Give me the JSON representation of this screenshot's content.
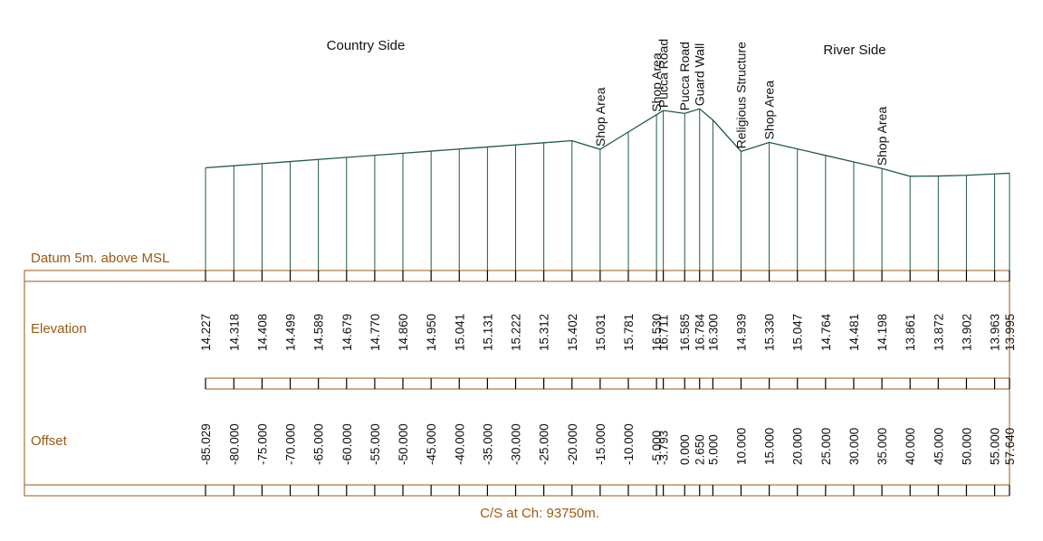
{
  "side_labels": {
    "left": "Country Side",
    "right": "River Side"
  },
  "datum_label": "Datum 5m. above MSL",
  "rows": {
    "elevation": "Elevation",
    "offset": "Offset"
  },
  "caption": "C/S at Ch: 93750m.",
  "colors": {
    "profile": "#1e5a4a",
    "frame": "#9a5a12",
    "text": "#111111"
  },
  "chart_data": {
    "type": "line",
    "xlabel": "Offset",
    "ylabel": "Elevation",
    "datum": 5,
    "points": [
      {
        "offset": -85.029,
        "elevation": 14.227,
        "offset_label": "-85.029",
        "elevation_label": "14.227"
      },
      {
        "offset": -80.0,
        "elevation": 14.318,
        "offset_label": "-80.000",
        "elevation_label": "14.318"
      },
      {
        "offset": -75.0,
        "elevation": 14.408,
        "offset_label": "-75.000",
        "elevation_label": "14.408"
      },
      {
        "offset": -70.0,
        "elevation": 14.499,
        "offset_label": "-70.000",
        "elevation_label": "14.499"
      },
      {
        "offset": -65.0,
        "elevation": 14.589,
        "offset_label": "-65.000",
        "elevation_label": "14.589"
      },
      {
        "offset": -60.0,
        "elevation": 14.679,
        "offset_label": "-60.000",
        "elevation_label": "14.679"
      },
      {
        "offset": -55.0,
        "elevation": 14.77,
        "offset_label": "-55.000",
        "elevation_label": "14.770"
      },
      {
        "offset": -50.0,
        "elevation": 14.86,
        "offset_label": "-50.000",
        "elevation_label": "14.860"
      },
      {
        "offset": -45.0,
        "elevation": 14.95,
        "offset_label": "-45.000",
        "elevation_label": "14.950"
      },
      {
        "offset": -40.0,
        "elevation": 15.041,
        "offset_label": "-40.000",
        "elevation_label": "15.041"
      },
      {
        "offset": -35.0,
        "elevation": 15.131,
        "offset_label": "-35.000",
        "elevation_label": "15.131"
      },
      {
        "offset": -30.0,
        "elevation": 15.222,
        "offset_label": "-30.000",
        "elevation_label": "15.222"
      },
      {
        "offset": -25.0,
        "elevation": 15.312,
        "offset_label": "-25.000",
        "elevation_label": "15.312"
      },
      {
        "offset": -20.0,
        "elevation": 15.402,
        "offset_label": "-20.000",
        "elevation_label": "15.402"
      },
      {
        "offset": -15.0,
        "elevation": 15.031,
        "offset_label": "-15.000",
        "elevation_label": "15.031"
      },
      {
        "offset": -10.0,
        "elevation": 15.781,
        "offset_label": "-10.000",
        "elevation_label": "15.781"
      },
      {
        "offset": -5.0,
        "elevation": 16.53,
        "offset_label": "-5.000",
        "elevation_label": "16.530"
      },
      {
        "offset": -3.793,
        "elevation": 16.711,
        "offset_label": "-3.793",
        "elevation_label": "16.711"
      },
      {
        "offset": 0.0,
        "elevation": 16.585,
        "offset_label": "0.000",
        "elevation_label": "16.585"
      },
      {
        "offset": 2.65,
        "elevation": 16.784,
        "offset_label": "2.650",
        "elevation_label": "16.784"
      },
      {
        "offset": 5.0,
        "elevation": 16.3,
        "offset_label": "5.000",
        "elevation_label": "16.300"
      },
      {
        "offset": 10.0,
        "elevation": 14.939,
        "offset_label": "10.000",
        "elevation_label": "14.939"
      },
      {
        "offset": 15.0,
        "elevation": 15.33,
        "offset_label": "15.000",
        "elevation_label": "15.330"
      },
      {
        "offset": 20.0,
        "elevation": 15.047,
        "offset_label": "20.000",
        "elevation_label": "15.047"
      },
      {
        "offset": 25.0,
        "elevation": 14.764,
        "offset_label": "25.000",
        "elevation_label": "14.764"
      },
      {
        "offset": 30.0,
        "elevation": 14.481,
        "offset_label": "30.000",
        "elevation_label": "14.481"
      },
      {
        "offset": 35.0,
        "elevation": 14.198,
        "offset_label": "35.000",
        "elevation_label": "14.198"
      },
      {
        "offset": 40.0,
        "elevation": 13.861,
        "offset_label": "40.000",
        "elevation_label": "13.861"
      },
      {
        "offset": 45.0,
        "elevation": 13.872,
        "offset_label": "45.000",
        "elevation_label": "13.872"
      },
      {
        "offset": 50.0,
        "elevation": 13.902,
        "offset_label": "50.000",
        "elevation_label": "13.902"
      },
      {
        "offset": 55.0,
        "elevation": 13.963,
        "offset_label": "55.000",
        "elevation_label": "13.963"
      },
      {
        "offset": 57.64,
        "elevation": 13.995,
        "offset_label": "57.640",
        "elevation_label": "13.995"
      }
    ],
    "annotations": [
      {
        "text": "Shop Area",
        "offset": -15.0
      },
      {
        "text": "Shop Area",
        "offset": -5.0
      },
      {
        "text": "Pucca Road",
        "offset": -3.793
      },
      {
        "text": "Pucca Road",
        "offset": 0.0
      },
      {
        "text": "Guard Wall",
        "offset": 2.65
      },
      {
        "text": "Religious Structure",
        "offset": 10.0
      },
      {
        "text": "Shop Area",
        "offset": 15.0
      },
      {
        "text": "Shop Area",
        "offset": 35.0
      }
    ]
  }
}
